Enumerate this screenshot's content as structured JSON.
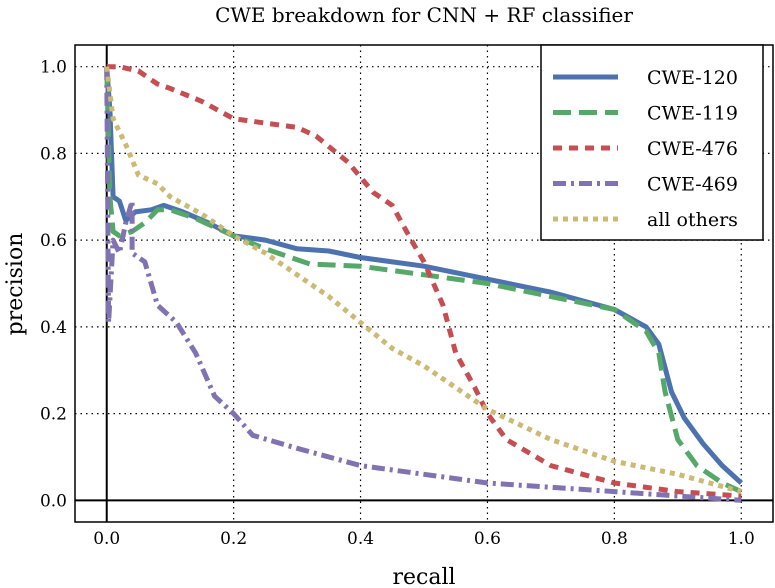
{
  "chart_data": {
    "type": "line",
    "title": "CWE breakdown for CNN + RF classifier",
    "xlabel": "recall",
    "ylabel": "precision",
    "xlim": [
      -0.05,
      1.05
    ],
    "ylim": [
      -0.05,
      1.05
    ],
    "xticks": [
      "0.0",
      "0.2",
      "0.4",
      "0.6",
      "0.8",
      "1.0"
    ],
    "yticks": [
      "0.0",
      "0.2",
      "0.4",
      "0.6",
      "0.8",
      "1.0"
    ],
    "grid": true,
    "legend_position": "top-right",
    "series": [
      {
        "name": "CWE-120",
        "color": "#4c72b0",
        "style": "solid",
        "x": [
          0,
          0.005,
          0.01,
          0.02,
          0.03,
          0.045,
          0.07,
          0.09,
          0.12,
          0.16,
          0.2,
          0.25,
          0.3,
          0.35,
          0.4,
          0.5,
          0.6,
          0.7,
          0.8,
          0.85,
          0.87,
          0.89,
          0.91,
          0.94,
          0.97,
          1.0
        ],
        "y": [
          1.0,
          0.9,
          0.7,
          0.69,
          0.645,
          0.665,
          0.67,
          0.68,
          0.665,
          0.64,
          0.61,
          0.6,
          0.58,
          0.575,
          0.56,
          0.54,
          0.51,
          0.48,
          0.44,
          0.4,
          0.36,
          0.25,
          0.19,
          0.13,
          0.08,
          0.04
        ]
      },
      {
        "name": "CWE-119",
        "color": "#55a868",
        "style": "dashed",
        "x": [
          0,
          0.005,
          0.01,
          0.02,
          0.04,
          0.06,
          0.08,
          0.1,
          0.14,
          0.2,
          0.25,
          0.29,
          0.32,
          0.4,
          0.5,
          0.6,
          0.7,
          0.8,
          0.85,
          0.87,
          0.88,
          0.9,
          0.93,
          0.97,
          1.0
        ],
        "y": [
          1.0,
          0.7,
          0.62,
          0.61,
          0.62,
          0.64,
          0.67,
          0.67,
          0.65,
          0.61,
          0.58,
          0.56,
          0.545,
          0.54,
          0.52,
          0.5,
          0.47,
          0.44,
          0.39,
          0.34,
          0.25,
          0.14,
          0.08,
          0.04,
          0.02
        ]
      },
      {
        "name": "CWE-476",
        "color": "#c44e52",
        "style": "short-dashed",
        "x": [
          0,
          0.02,
          0.05,
          0.08,
          0.1,
          0.15,
          0.2,
          0.25,
          0.3,
          0.33,
          0.38,
          0.42,
          0.45,
          0.48,
          0.5,
          0.53,
          0.55,
          0.58,
          0.6,
          0.63,
          0.7,
          0.8,
          0.9,
          1.0
        ],
        "y": [
          1.0,
          1.0,
          0.99,
          0.96,
          0.95,
          0.92,
          0.88,
          0.87,
          0.86,
          0.84,
          0.78,
          0.71,
          0.68,
          0.6,
          0.55,
          0.45,
          0.34,
          0.26,
          0.2,
          0.14,
          0.08,
          0.04,
          0.02,
          0.01
        ]
      },
      {
        "name": "CWE-469",
        "color": "#8172b2",
        "style": "dash-dot",
        "x": [
          0,
          0.003,
          0.01,
          0.02,
          0.03,
          0.04,
          0.04,
          0.06,
          0.08,
          0.11,
          0.14,
          0.17,
          0.2,
          0.23,
          0.3,
          0.4,
          0.5,
          0.6,
          0.7,
          0.8,
          0.9,
          1.0
        ],
        "y": [
          1.0,
          0.41,
          0.6,
          0.57,
          0.64,
          0.69,
          0.57,
          0.55,
          0.45,
          0.41,
          0.34,
          0.24,
          0.2,
          0.15,
          0.12,
          0.08,
          0.06,
          0.04,
          0.03,
          0.02,
          0.01,
          0.0
        ]
      },
      {
        "name": "all others",
        "color": "#ccb974",
        "style": "dotted",
        "x": [
          0,
          0.01,
          0.03,
          0.05,
          0.08,
          0.1,
          0.15,
          0.2,
          0.25,
          0.3,
          0.35,
          0.4,
          0.45,
          0.5,
          0.55,
          0.6,
          0.7,
          0.8,
          0.9,
          1.0
        ],
        "y": [
          1.0,
          0.88,
          0.82,
          0.75,
          0.73,
          0.7,
          0.66,
          0.61,
          0.57,
          0.52,
          0.47,
          0.41,
          0.35,
          0.31,
          0.26,
          0.21,
          0.14,
          0.09,
          0.06,
          0.02
        ]
      }
    ]
  }
}
